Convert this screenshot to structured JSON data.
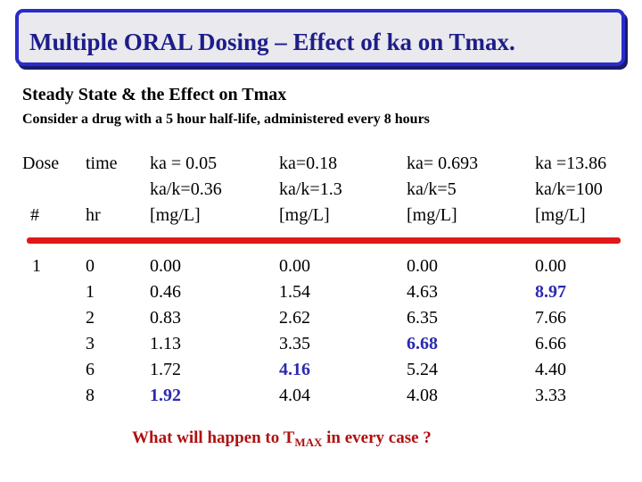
{
  "title": "Multiple ORAL Dosing – Effect of ka on Tmax.",
  "subtitle": "Steady State & the Effect on Tmax",
  "description": "Consider a drug with a 5 hour half-life, administered every 8 hours",
  "headers": {
    "dose": "Dose",
    "dose_unit": "#",
    "time": "time",
    "time_unit": "hr",
    "cases": [
      {
        "ka": "ka = 0.05",
        "ratio": "ka/k=0.36",
        "unit": "[mg/L]"
      },
      {
        "ka": "ka=0.18",
        "ratio": "ka/k=1.3",
        "unit": "[mg/L]"
      },
      {
        "ka": "ka= 0.693",
        "ratio": "ka/k=5",
        "unit": "[mg/L]"
      },
      {
        "ka": "ka =13.86",
        "ratio": "ka/k=100",
        "unit": "[mg/L]"
      }
    ]
  },
  "dose_number": "1",
  "times": [
    "0",
    "1",
    "2",
    "3",
    "6",
    "8"
  ],
  "concentrations": [
    [
      "0.00",
      "0.46",
      "0.83",
      "1.13",
      "1.72",
      "1.92"
    ],
    [
      "0.00",
      "1.54",
      "2.62",
      "3.35",
      "4.16",
      "4.04"
    ],
    [
      "0.00",
      "4.63",
      "6.35",
      "6.68",
      "5.24",
      "4.08"
    ],
    [
      "0.00",
      "8.97",
      "7.66",
      "6.66",
      "4.40",
      "3.33"
    ]
  ],
  "max_index": [
    5,
    4,
    3,
    1
  ],
  "question": {
    "prefix": "What will happen to T",
    "subscript": "MAX",
    "suffix": " in every case ?"
  },
  "colors": {
    "title": "#1d1d8a",
    "highlight": "#2a2ab0",
    "rule": "#e01818",
    "question": "#b01010"
  }
}
